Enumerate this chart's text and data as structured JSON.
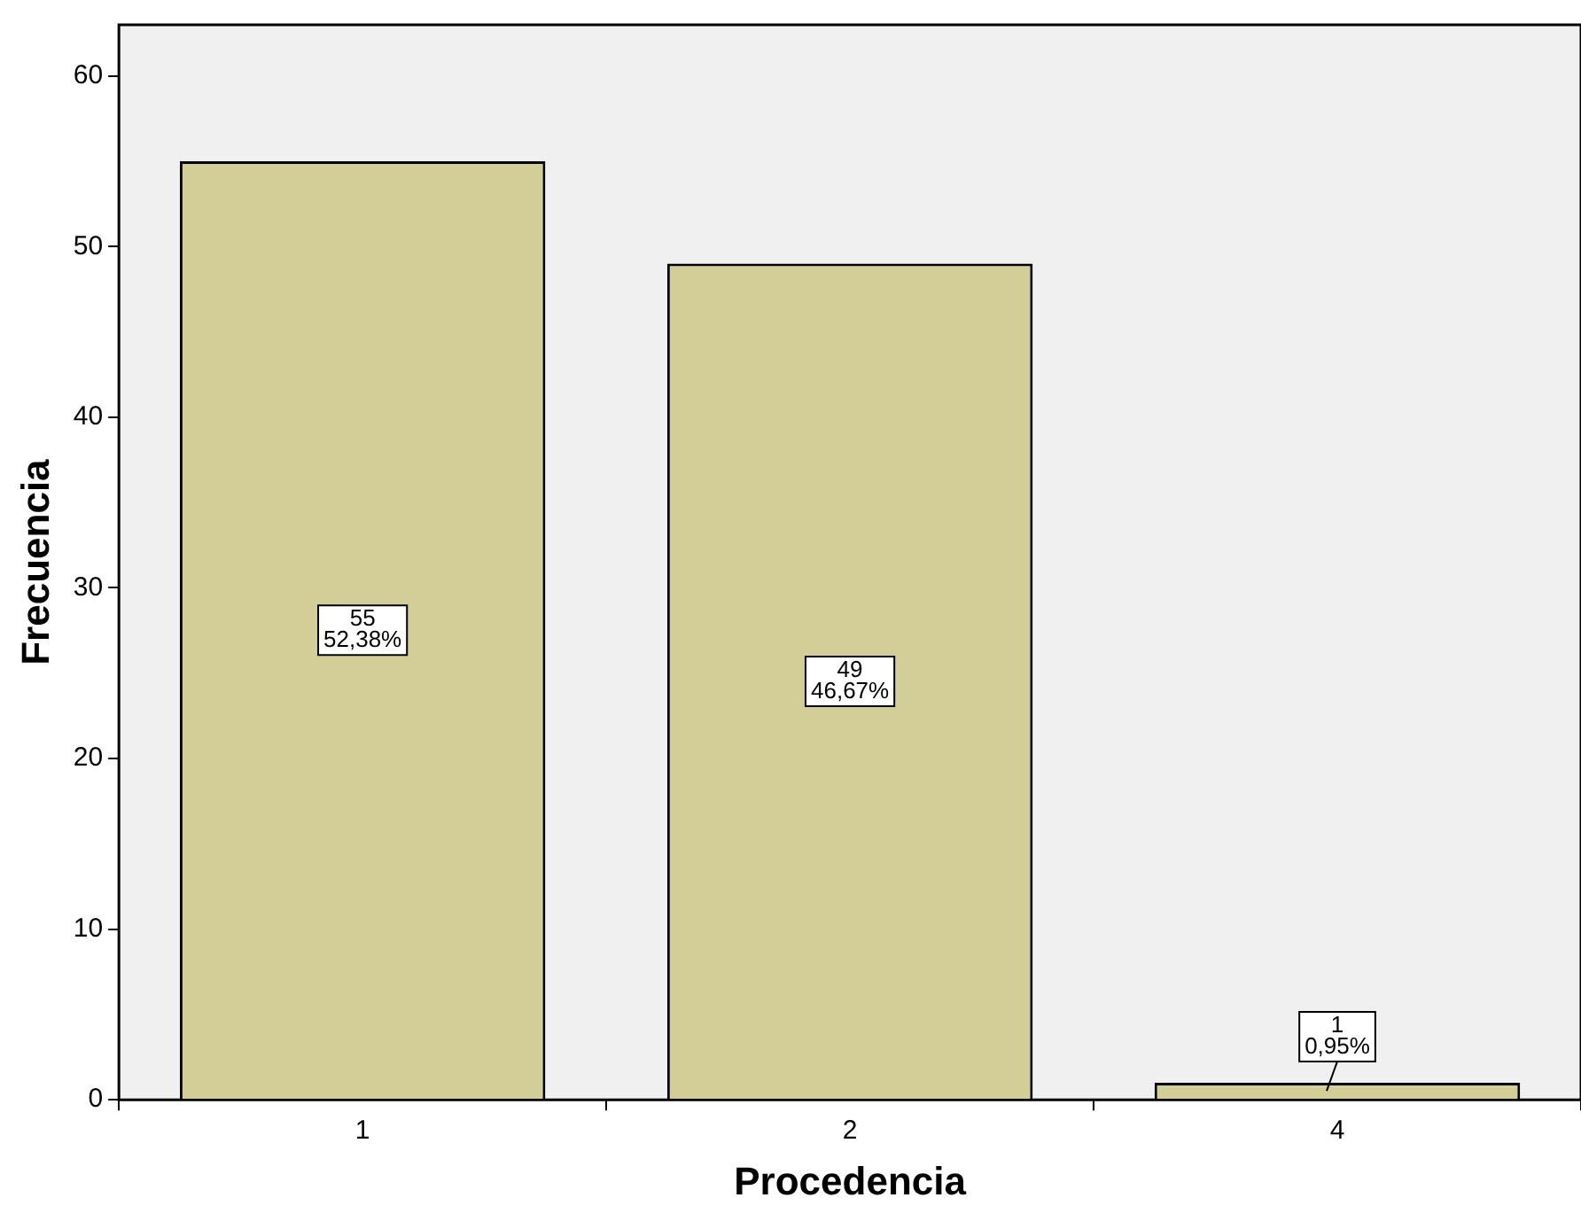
{
  "chart_data": {
    "type": "bar",
    "xlabel": "Procedencia",
    "ylabel": "Frecuencia",
    "categories": [
      "1",
      "2",
      "4"
    ],
    "values": [
      55,
      49,
      1
    ],
    "color": "#d3ce97",
    "value_labels": [
      "55\n52,38%",
      "49\n46,67%",
      "1\n0,95%"
    ],
    "ylim": [
      0,
      63
    ],
    "yticks": [
      0,
      10,
      20,
      30,
      40,
      50,
      60
    ],
    "grid": false,
    "legend": false
  }
}
